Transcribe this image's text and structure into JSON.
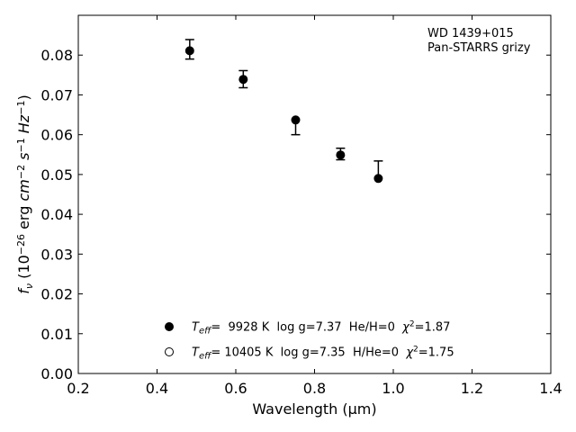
{
  "chart_data": {
    "type": "scatter",
    "xlabel": "Wavelength (μm)",
    "ylabel": "f_ν (10^-26 erg cm^-2 s^-1 Hz^-1)",
    "xlim": [
      0.2,
      1.4
    ],
    "ylim": [
      0.0,
      0.09
    ],
    "x_ticks": [
      0.2,
      0.4,
      0.6,
      0.8,
      1.0,
      1.2,
      1.4
    ],
    "x_tick_labels": [
      "0.2",
      "0.4",
      "0.6",
      "0.8",
      "1.0",
      "1.2",
      "1.4"
    ],
    "y_ticks": [
      0.0,
      0.01,
      0.02,
      0.03,
      0.04,
      0.05,
      0.06,
      0.07,
      0.08
    ],
    "y_tick_labels": [
      "0.00",
      "0.01",
      "0.02",
      "0.03",
      "0.04",
      "0.05",
      "0.06",
      "0.07",
      "0.08"
    ],
    "grid": false,
    "annotation_lines": [
      "WD 1439+015",
      "Pan-STARRS grizy"
    ],
    "observed": {
      "x": [
        0.483,
        0.619,
        0.752,
        0.866,
        0.962
      ],
      "y": [
        0.0811,
        0.0739,
        0.0637,
        0.0549,
        0.049
      ],
      "err_low": [
        0.0021,
        0.0021,
        0.0037,
        0.0012,
        0.0
      ],
      "err_high": [
        0.0028,
        0.0022,
        0.0,
        0.0017,
        0.0044
      ]
    },
    "models": [
      {
        "marker": "filled-circle",
        "x": [
          0.483,
          0.619,
          0.752,
          0.866,
          0.962
        ],
        "y": [
          0.0811,
          0.0739,
          0.0637,
          0.0549,
          0.049
        ]
      },
      {
        "marker": "open-circle",
        "x": [],
        "y": []
      }
    ],
    "legend": [
      {
        "marker": "filled-circle",
        "teff_value": "=  9928 K",
        "logg": "log g=7.37",
        "comp": "He/H=0",
        "chi2_value": "=1.87"
      },
      {
        "marker": "open-circle",
        "teff_value": "= 10405 K",
        "logg": "log g=7.35",
        "comp": "H/He=0",
        "chi2_value": "=1.75"
      }
    ]
  }
}
